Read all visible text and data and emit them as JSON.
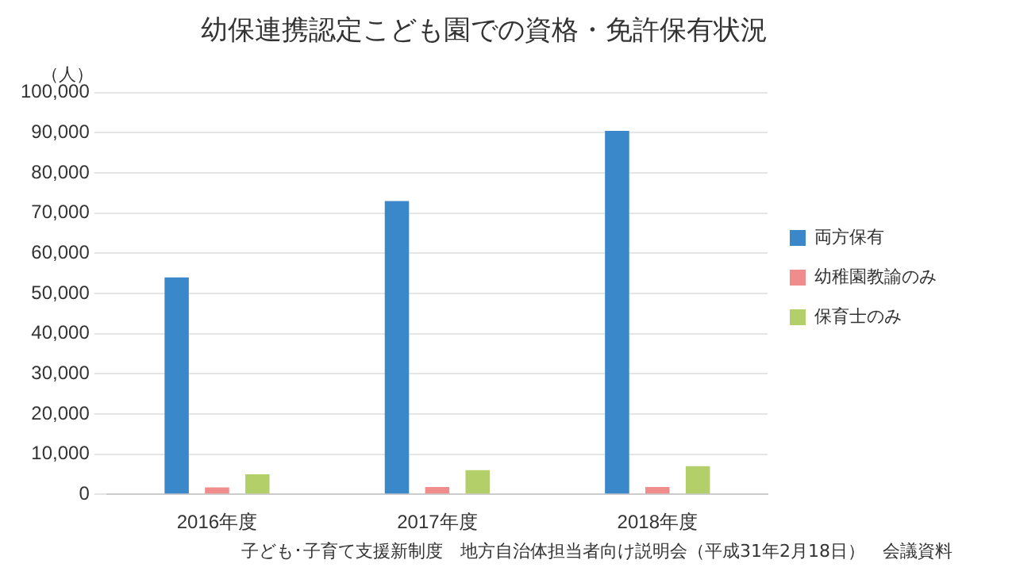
{
  "chart_data": {
    "type": "bar",
    "title": "幼保連携認定こども園での資格・免許保有状況",
    "ylabel": "（人）",
    "categories": [
      "2016年度",
      "2017年度",
      "2018年度"
    ],
    "series": [
      {
        "name": "両方保有",
        "color": "#3a87c9",
        "values": [
          54000,
          73000,
          90500
        ]
      },
      {
        "name": "幼稚園教諭のみ",
        "color": "#f08c8c",
        "values": [
          1700,
          1800,
          1800
        ]
      },
      {
        "name": "保育士のみ",
        "color": "#b3cf6a",
        "values": [
          5000,
          6000,
          7000
        ]
      }
    ],
    "ylim": [
      0,
      100000
    ],
    "yticks": [
      0,
      {
        "value": 10000,
        "label": "10,000"
      },
      {
        "value": 20000,
        "label": "20,000"
      },
      {
        "value": 30000,
        "label": "30,000"
      },
      {
        "value": 40000,
        "label": "40,000"
      },
      {
        "value": 50000,
        "label": "50,000"
      },
      {
        "value": 60000,
        "label": "60,000"
      },
      {
        "value": 70000,
        "label": "70,000"
      },
      {
        "value": 80000,
        "label": "80,000"
      },
      {
        "value": 90000,
        "label": "90,000"
      },
      {
        "value": 100000,
        "label": "100,000"
      }
    ],
    "grid": "y",
    "legend": "right",
    "annotations": [
      "子ども･子育て支援新制度　地方自治体担当者向け説明会（平成31年2月18日）　会議資料"
    ]
  }
}
